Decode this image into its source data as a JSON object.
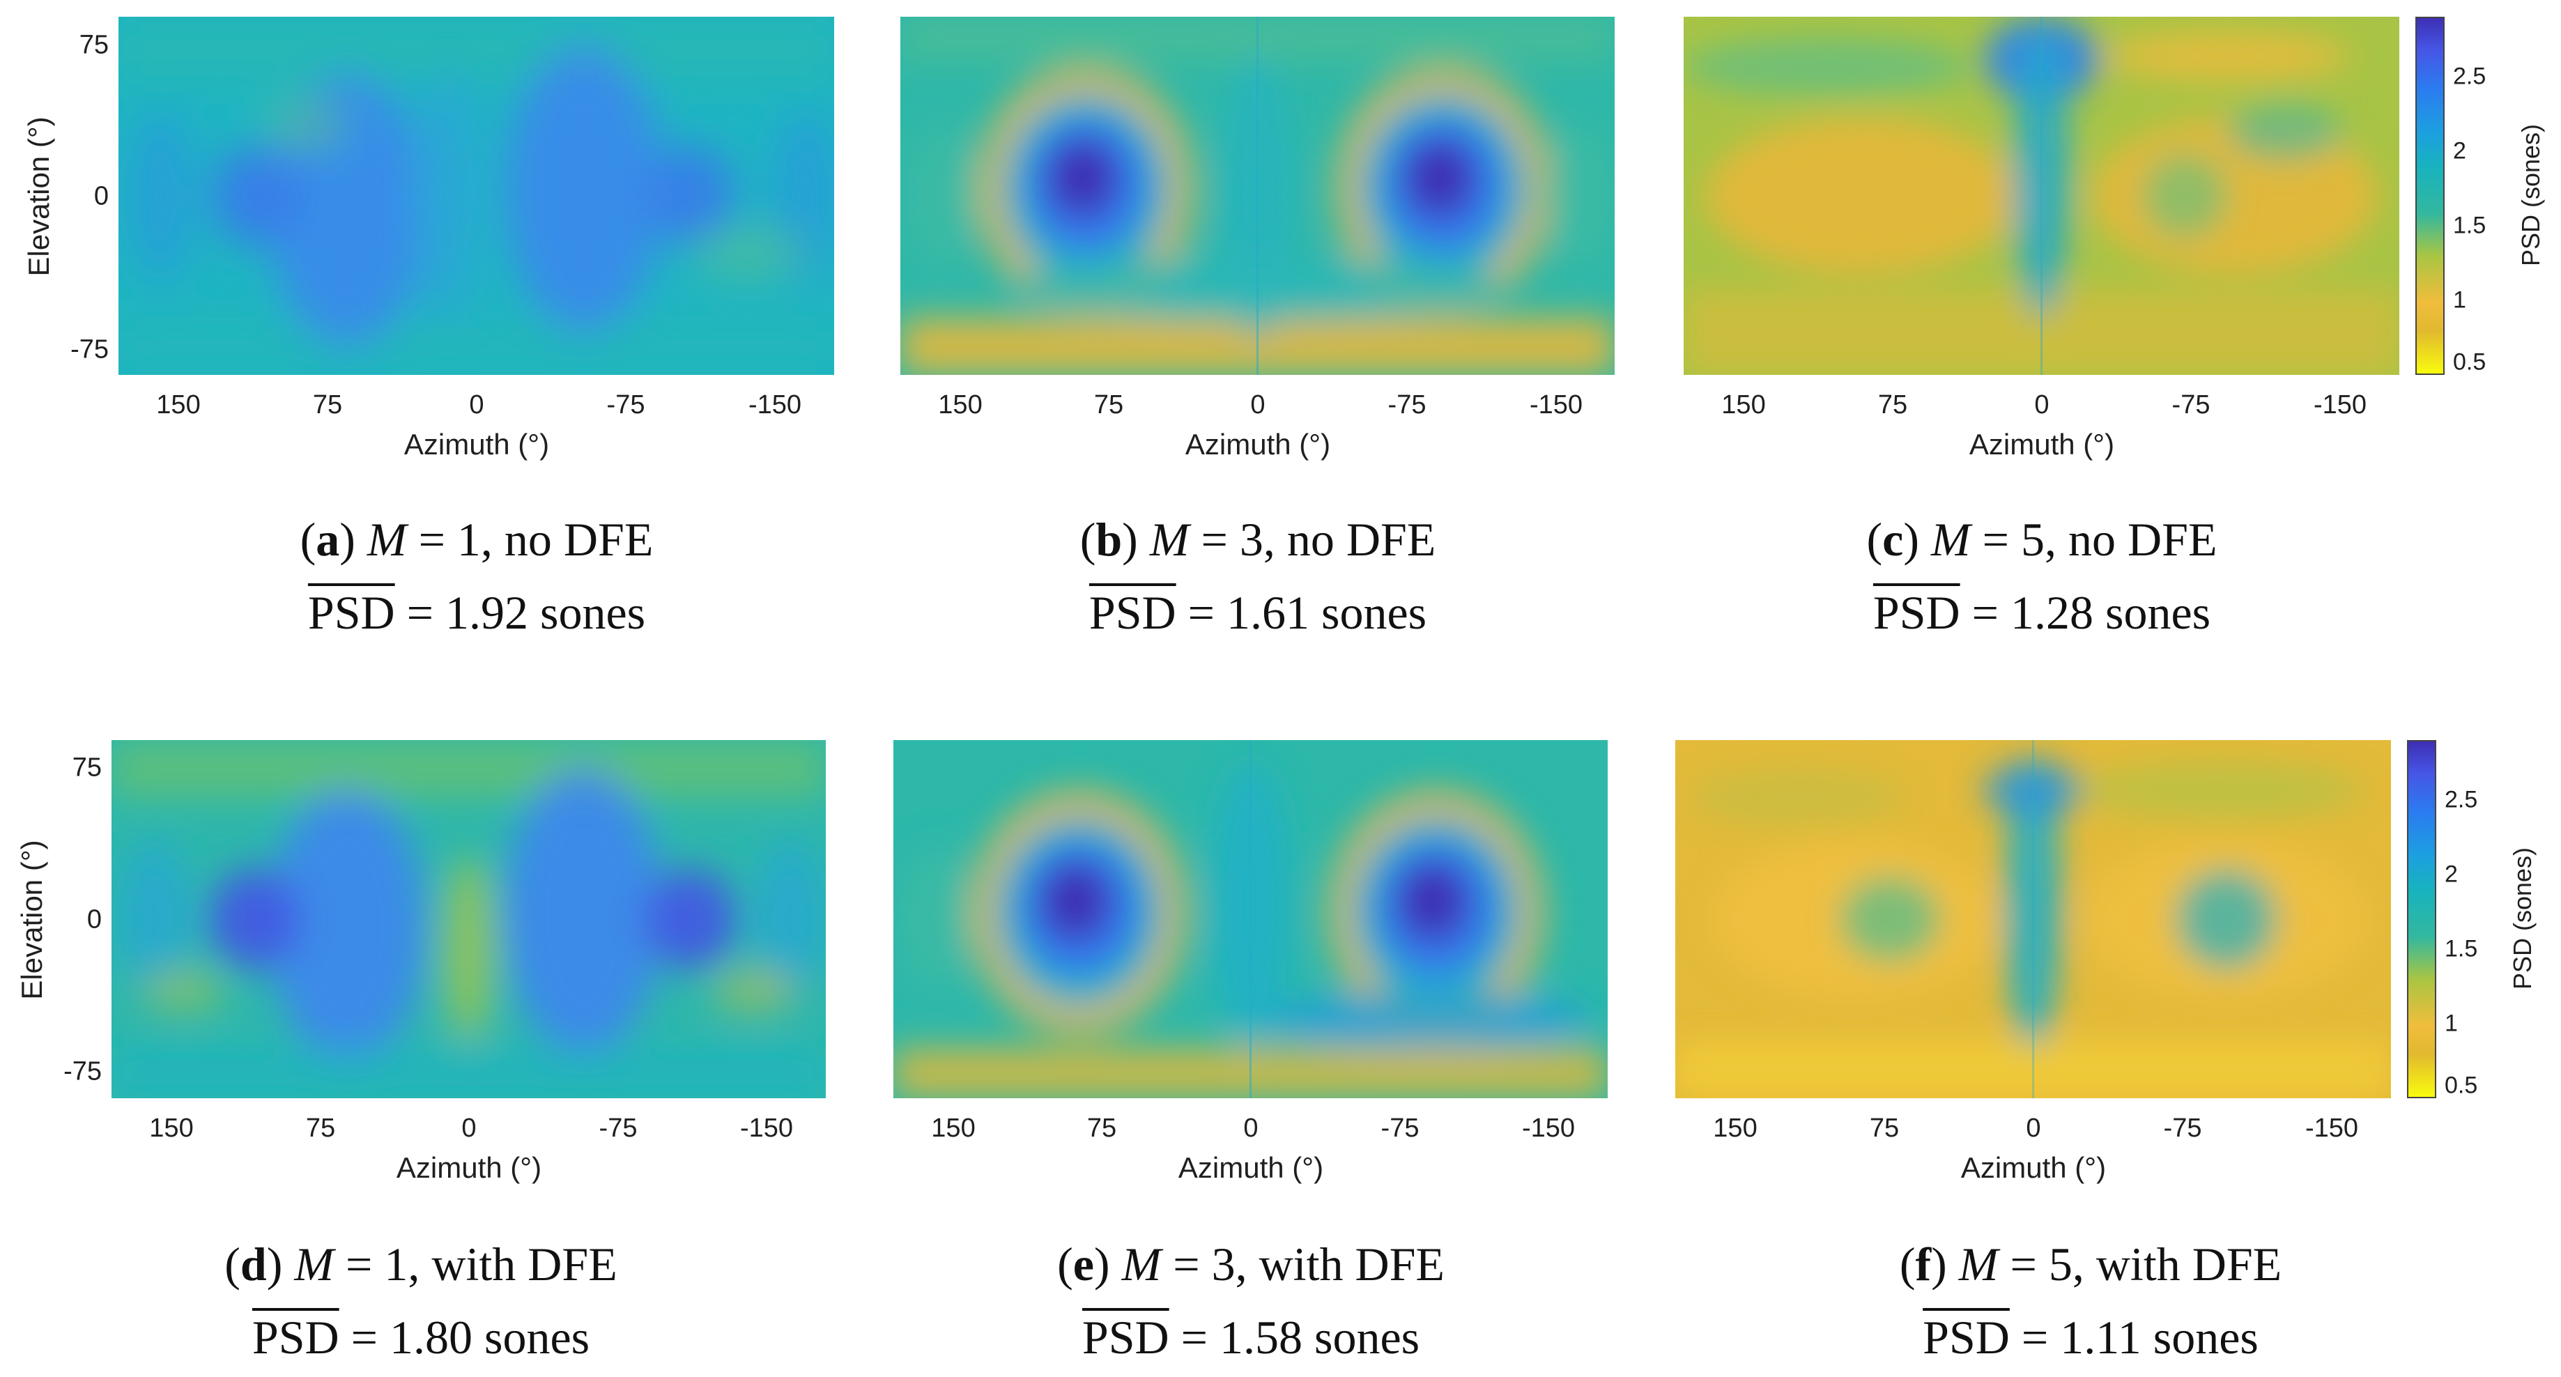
{
  "chart_data": [
    {
      "type": "heatmap",
      "id": "a",
      "panel_letter": "a",
      "m_value": "1",
      "dfe_text": "no DFE",
      "mean_psd": "1.92",
      "unit": "sones",
      "xlabel": "Azimuth (°)",
      "ylabel": "Elevation (°)",
      "xlim": [
        180,
        -180
      ],
      "ylim": [
        -90,
        90
      ],
      "x_ticks": [
        "150",
        "75",
        "0",
        "-75",
        "-150"
      ],
      "y_ticks": [
        "75",
        "0",
        "-75"
      ],
      "colormap": "parula",
      "clim": [
        0.5,
        2.9
      ]
    },
    {
      "type": "heatmap",
      "id": "b",
      "panel_letter": "b",
      "m_value": "3",
      "dfe_text": "no DFE",
      "mean_psd": "1.61",
      "unit": "sones",
      "xlabel": "Azimuth (°)",
      "ylabel": "",
      "xlim": [
        180,
        -180
      ],
      "ylim": [
        -90,
        90
      ],
      "x_ticks": [
        "150",
        "75",
        "0",
        "-75",
        "-150"
      ],
      "y_ticks": [],
      "colormap": "parula",
      "clim": [
        0.5,
        2.9
      ]
    },
    {
      "type": "heatmap",
      "id": "c",
      "panel_letter": "c",
      "m_value": "5",
      "dfe_text": "no DFE",
      "mean_psd": "1.28",
      "unit": "sones",
      "xlabel": "Azimuth (°)",
      "ylabel": "",
      "xlim": [
        180,
        -180
      ],
      "ylim": [
        -90,
        90
      ],
      "x_ticks": [
        "150",
        "75",
        "0",
        "-75",
        "-150"
      ],
      "y_ticks": [],
      "colormap": "parula",
      "clim": [
        0.5,
        2.9
      ],
      "colorbar": {
        "label": "PSD (sones)",
        "ticks": [
          "0.5",
          "1",
          "1.5",
          "2",
          "2.5"
        ],
        "tick_values": [
          0.5,
          1,
          1.5,
          2,
          2.5
        ]
      }
    },
    {
      "type": "heatmap",
      "id": "d",
      "panel_letter": "d",
      "m_value": "1",
      "dfe_text": "with DFE",
      "mean_psd": "1.80",
      "unit": "sones",
      "xlabel": "Azimuth (°)",
      "ylabel": "Elevation (°)",
      "xlim": [
        180,
        -180
      ],
      "ylim": [
        -90,
        90
      ],
      "x_ticks": [
        "150",
        "75",
        "0",
        "-75",
        "-150"
      ],
      "y_ticks": [
        "75",
        "0",
        "-75"
      ],
      "colormap": "parula",
      "clim": [
        0.5,
        2.9
      ]
    },
    {
      "type": "heatmap",
      "id": "e",
      "panel_letter": "e",
      "m_value": "3",
      "dfe_text": "with DFE",
      "mean_psd": "1.58",
      "unit": "sones",
      "xlabel": "Azimuth (°)",
      "ylabel": "",
      "xlim": [
        180,
        -180
      ],
      "ylim": [
        -90,
        90
      ],
      "x_ticks": [
        "150",
        "75",
        "0",
        "-75",
        "-150"
      ],
      "y_ticks": [],
      "colormap": "parula",
      "clim": [
        0.5,
        2.9
      ]
    },
    {
      "type": "heatmap",
      "id": "f",
      "panel_letter": "f",
      "m_value": "5",
      "dfe_text": "with DFE",
      "mean_psd": "1.11",
      "unit": "sones",
      "xlabel": "Azimuth (°)",
      "ylabel": "",
      "xlim": [
        180,
        -180
      ],
      "ylim": [
        -90,
        90
      ],
      "x_ticks": [
        "150",
        "75",
        "0",
        "-75",
        "-150"
      ],
      "y_ticks": [],
      "colormap": "parula",
      "clim": [
        0.5,
        2.9
      ],
      "colorbar": {
        "label": "PSD (sones)",
        "ticks": [
          "0.5",
          "1",
          "1.5",
          "2",
          "2.5"
        ],
        "tick_values": [
          0.5,
          1,
          1.5,
          2,
          2.5
        ]
      }
    }
  ],
  "caption_psd_label": "PSD",
  "colors": {
    "blue_dark": "#3d2fb4",
    "blue": "#2f6fee",
    "cyan": "#1cb3c8",
    "teal": "#2dbaa6",
    "green": "#8cc84a",
    "orange": "#eab63a",
    "yellow": "#f9e82a"
  }
}
